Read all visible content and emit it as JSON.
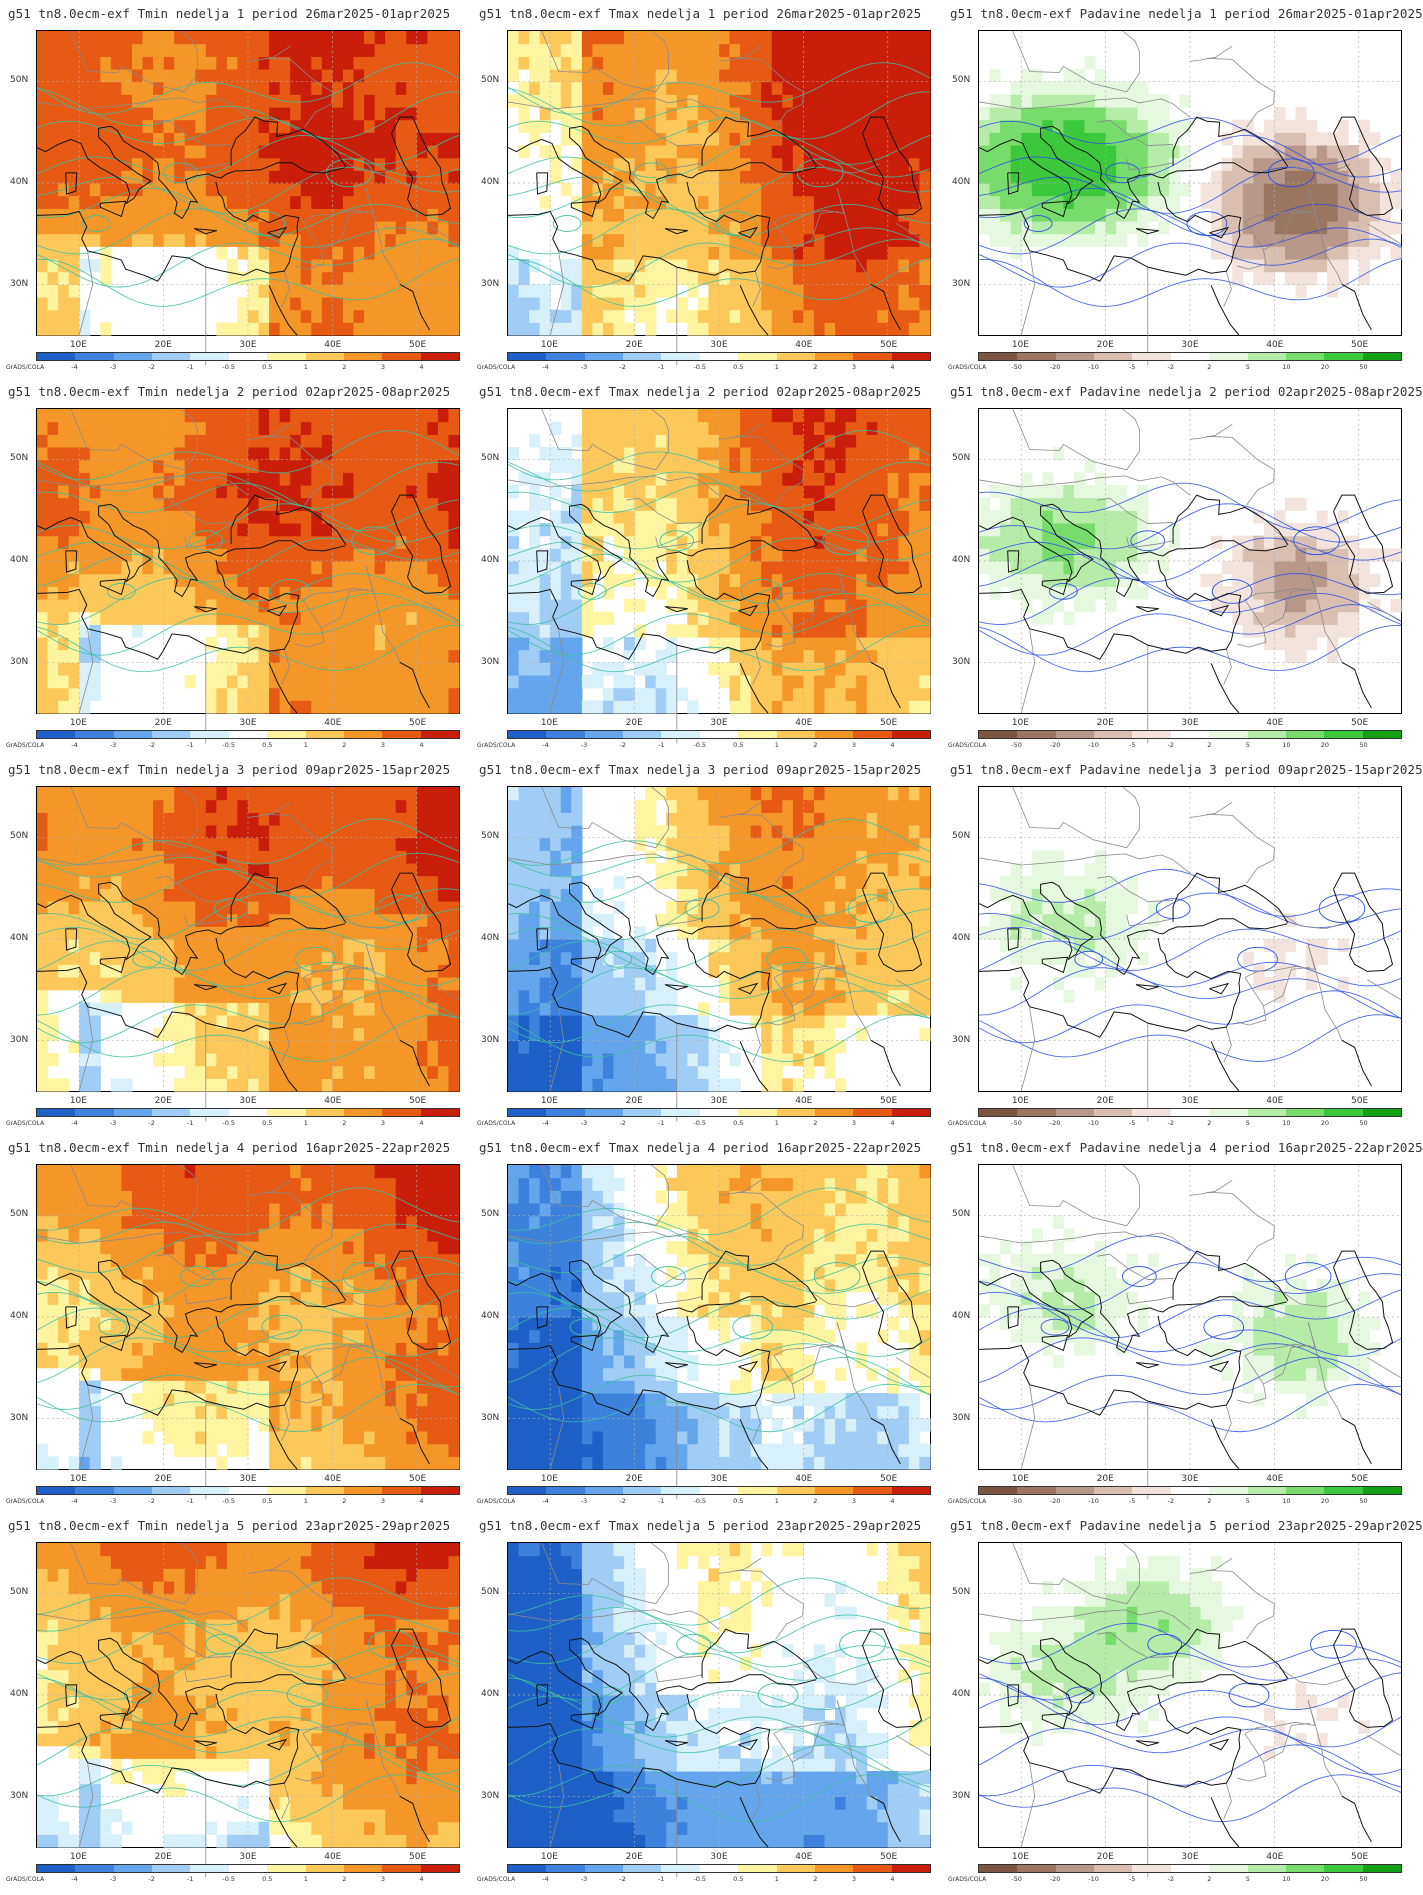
{
  "axes": {
    "lat_labels": [
      "50N",
      "40N",
      "30N"
    ],
    "lon_labels": [
      "10E",
      "20E",
      "30E",
      "40E",
      "50E"
    ]
  },
  "credit": "GrADS/COLA",
  "legends": {
    "temp": {
      "ticks": [
        "-4",
        "-3",
        "-2",
        "-1",
        "-0.5",
        "0.5",
        "1",
        "2",
        "3",
        "4"
      ],
      "colors": [
        "#1e5fc8",
        "#3c82dc",
        "#64a5eb",
        "#a0cdf5",
        "#d7f0fa",
        "#ffffff",
        "#fff5a0",
        "#fcc85a",
        "#f59628",
        "#e65a14",
        "#c81e0a"
      ]
    },
    "precip": {
      "ticks": [
        "-50",
        "-20",
        "-10",
        "-5",
        "-2",
        "2",
        "5",
        "10",
        "20",
        "50"
      ],
      "colors": [
        "#7a5540",
        "#9a7560",
        "#b8988a",
        "#d8bfb2",
        "#f2e4dc",
        "#ffffff",
        "#e6f8e0",
        "#b4eca8",
        "#78dc6c",
        "#3cc83c",
        "#14a014"
      ]
    }
  },
  "rows": [
    {
      "week": "1",
      "period": "26mar2025-01apr2025",
      "titles": [
        "g51 tn8.0ecm-exf Tmin nedelja 1 period 26mar2025-01apr2025",
        "g51 tn8.0ecm-exf Tmax nedelja 1 period 26mar2025-01apr2025",
        "g51 tn8.0ecm-exf Padavine nedelja 1 period 26mar2025-01apr2025"
      ]
    },
    {
      "week": "2",
      "period": "02apr2025-08apr2025",
      "titles": [
        "g51 tn8.0ecm-exf Tmin nedelja 2 period 02apr2025-08apr2025",
        "g51 tn8.0ecm-exf Tmax nedelja 2 period 02apr2025-08apr2025",
        "g51 tn8.0ecm-exf Padavine nedelja 2 period 02apr2025-08apr2025"
      ]
    },
    {
      "week": "3",
      "period": "09apr2025-15apr2025",
      "titles": [
        "g51 tn8.0ecm-exf Tmin nedelja 3 period 09apr2025-15apr2025",
        "g51 tn8.0ecm-exf Tmax nedelja 3 period 09apr2025-15apr2025",
        "g51 tn8.0ecm-exf Padavine nedelja 3 period 09apr2025-15apr2025"
      ]
    },
    {
      "week": "4",
      "period": "16apr2025-22apr2025",
      "titles": [
        "g51 tn8.0ecm-exf Tmin nedelja 4 period 16apr2025-22apr2025",
        "g51 tn8.0ecm-exf Tmax nedelja 4 period 16apr2025-22apr2025",
        "g51 tn8.0ecm-exf Padavine nedelja 4 period 16apr2025-22apr2025"
      ]
    },
    {
      "week": "5",
      "period": "23apr2025-29apr2025",
      "titles": [
        "g51 tn8.0ecm-exf Tmin nedelja 5 period 23apr2025-29apr2025",
        "g51 tn8.0ecm-exf Tmax nedelja 5 period 23apr2025-29apr2025",
        "g51 tn8.0ecm-exf Padavine nedelja 5 period 23apr2025-29apr2025"
      ]
    }
  ],
  "colors": {
    "contour_temp": "#3cbfa0",
    "contour_precip": "#2a4fe6",
    "coast": "#111111",
    "border": "#8a8a8a",
    "grid": "#b0b0b0"
  }
}
